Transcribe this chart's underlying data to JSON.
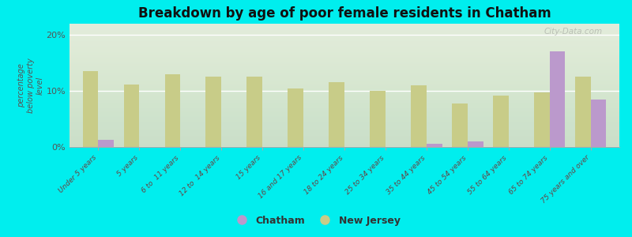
{
  "title": "Breakdown by age of poor female residents in Chatham",
  "ylabel": "percentage\nbelow poverty\nlevel",
  "background_color": "#00EEEE",
  "plot_bg_top": "#e8ede0",
  "plot_bg_bottom": "#d8e8c8",
  "categories": [
    "Under 5 years",
    "5 years",
    "6 to  11 years",
    "12 to  14 years",
    "15 years",
    "16 and 17 years",
    "18 to 24 years",
    "25 to 34 years",
    "35 to 44 years",
    "45 to 54 years",
    "55 to 64 years",
    "65 to 74 years",
    "75 years and over"
  ],
  "chatham": [
    1.2,
    0.0,
    0.0,
    0.0,
    0.0,
    0.0,
    0.0,
    0.0,
    0.5,
    1.0,
    0.0,
    17.0,
    8.5
  ],
  "new_jersey": [
    13.5,
    11.2,
    13.0,
    12.5,
    12.5,
    10.5,
    11.5,
    10.0,
    11.0,
    7.8,
    9.2,
    9.8,
    12.5
  ],
  "chatham_color": "#bb99cc",
  "new_jersey_color": "#c8cc88",
  "ylim": [
    0,
    22
  ],
  "yticks": [
    0,
    10,
    20
  ],
  "ytick_labels": [
    "0%",
    "10%",
    "20%"
  ],
  "bar_width": 0.38,
  "watermark": "City-Data.com"
}
